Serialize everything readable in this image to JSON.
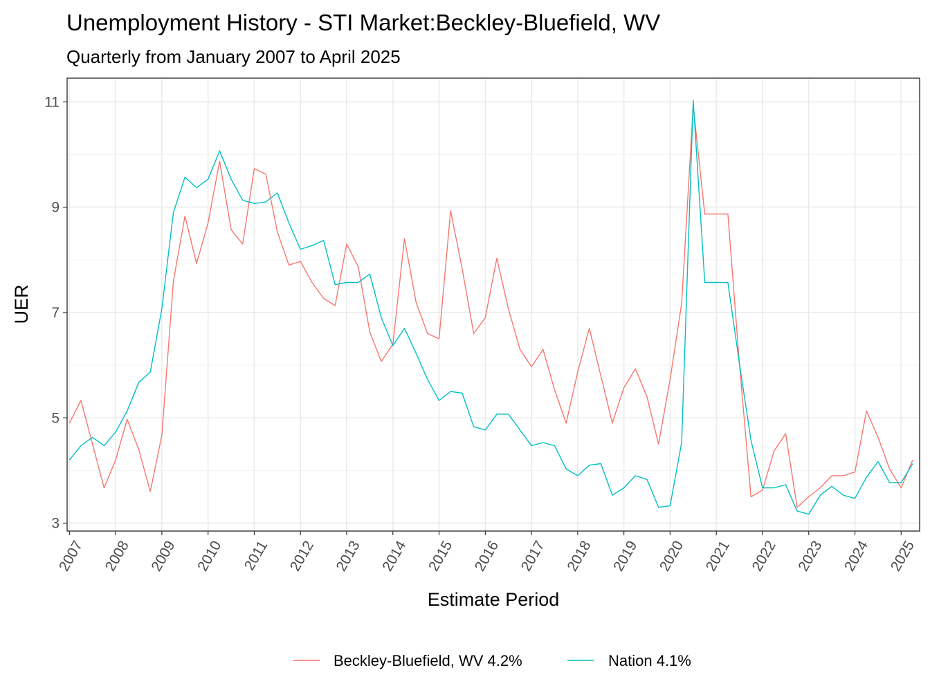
{
  "chart_data": {
    "type": "line",
    "title": "Unemployment History - STI Market:Beckley-Bluefield, WV",
    "subtitle": "Quarterly from January 2007 to April 2025",
    "xlabel": "Estimate Period",
    "ylabel": "UER",
    "xlim": [
      2006.95,
      2025.4
    ],
    "ylim": [
      2.85,
      11.45
    ],
    "x_ticks": [
      "2007",
      "2008",
      "2009",
      "2010",
      "2011",
      "2012",
      "2013",
      "2014",
      "2015",
      "2016",
      "2017",
      "2018",
      "2019",
      "2020",
      "2021",
      "2022",
      "2023",
      "2024",
      "2025"
    ],
    "y_ticks": [
      "3",
      "5",
      "7",
      "9",
      "11"
    ],
    "grid": true,
    "legend_position": "bottom",
    "x": [
      2007.0,
      2007.25,
      2007.5,
      2007.75,
      2008.0,
      2008.25,
      2008.5,
      2008.75,
      2009.0,
      2009.25,
      2009.5,
      2009.75,
      2010.0,
      2010.25,
      2010.5,
      2010.75,
      2011.0,
      2011.25,
      2011.5,
      2011.75,
      2012.0,
      2012.25,
      2012.5,
      2012.75,
      2013.0,
      2013.25,
      2013.5,
      2013.75,
      2014.0,
      2014.25,
      2014.5,
      2014.75,
      2015.0,
      2015.25,
      2015.5,
      2015.75,
      2016.0,
      2016.25,
      2016.5,
      2016.75,
      2017.0,
      2017.25,
      2017.5,
      2017.75,
      2018.0,
      2018.25,
      2018.5,
      2018.75,
      2019.0,
      2019.25,
      2019.5,
      2019.75,
      2020.0,
      2020.25,
      2020.5,
      2020.75,
      2021.0,
      2021.25,
      2021.5,
      2021.75,
      2022.0,
      2022.25,
      2022.5,
      2022.75,
      2023.0,
      2023.25,
      2023.5,
      2023.75,
      2024.0,
      2024.25,
      2024.5,
      2024.75,
      2025.0,
      2025.25
    ],
    "series": [
      {
        "name": "Beckley-Bluefield, WV 4.2%",
        "color": "#F8766D",
        "values": [
          4.9,
          5.33,
          4.5,
          3.67,
          4.2,
          4.97,
          4.4,
          3.6,
          4.67,
          7.6,
          8.83,
          7.93,
          8.7,
          9.87,
          8.57,
          8.3,
          9.73,
          9.63,
          8.53,
          7.9,
          7.97,
          7.57,
          7.27,
          7.13,
          8.3,
          7.87,
          6.63,
          6.07,
          6.4,
          8.4,
          7.2,
          6.6,
          6.5,
          8.93,
          7.83,
          6.6,
          6.9,
          8.03,
          7.07,
          6.3,
          5.97,
          6.3,
          5.53,
          4.9,
          5.87,
          6.7,
          5.8,
          4.9,
          5.57,
          5.93,
          5.4,
          4.5,
          5.73,
          7.17,
          10.93,
          8.87,
          8.87,
          8.87,
          6.03,
          3.5,
          3.63,
          4.37,
          4.7,
          3.3,
          3.5,
          3.67,
          3.9,
          3.9,
          3.97,
          5.13,
          4.63,
          4.03,
          3.67,
          4.2
        ]
      },
      {
        "name": "Nation 4.1%",
        "color": "#00BFC4",
        "values": [
          4.2,
          4.47,
          4.63,
          4.47,
          4.73,
          5.13,
          5.67,
          5.87,
          7.07,
          8.9,
          9.57,
          9.37,
          9.53,
          10.07,
          9.53,
          9.13,
          9.07,
          9.1,
          9.27,
          8.7,
          8.2,
          8.27,
          8.37,
          7.53,
          7.57,
          7.57,
          7.73,
          6.9,
          6.37,
          6.7,
          6.23,
          5.73,
          5.33,
          5.5,
          5.47,
          4.83,
          4.77,
          5.07,
          5.07,
          4.77,
          4.47,
          4.53,
          4.47,
          4.03,
          3.9,
          4.1,
          4.13,
          3.53,
          3.67,
          3.9,
          3.83,
          3.3,
          3.33,
          4.53,
          11.03,
          7.57,
          7.57,
          7.57,
          6.03,
          4.57,
          3.67,
          3.67,
          3.73,
          3.23,
          3.17,
          3.53,
          3.7,
          3.53,
          3.47,
          3.87,
          4.17,
          3.77,
          3.77,
          4.13
        ]
      }
    ]
  }
}
